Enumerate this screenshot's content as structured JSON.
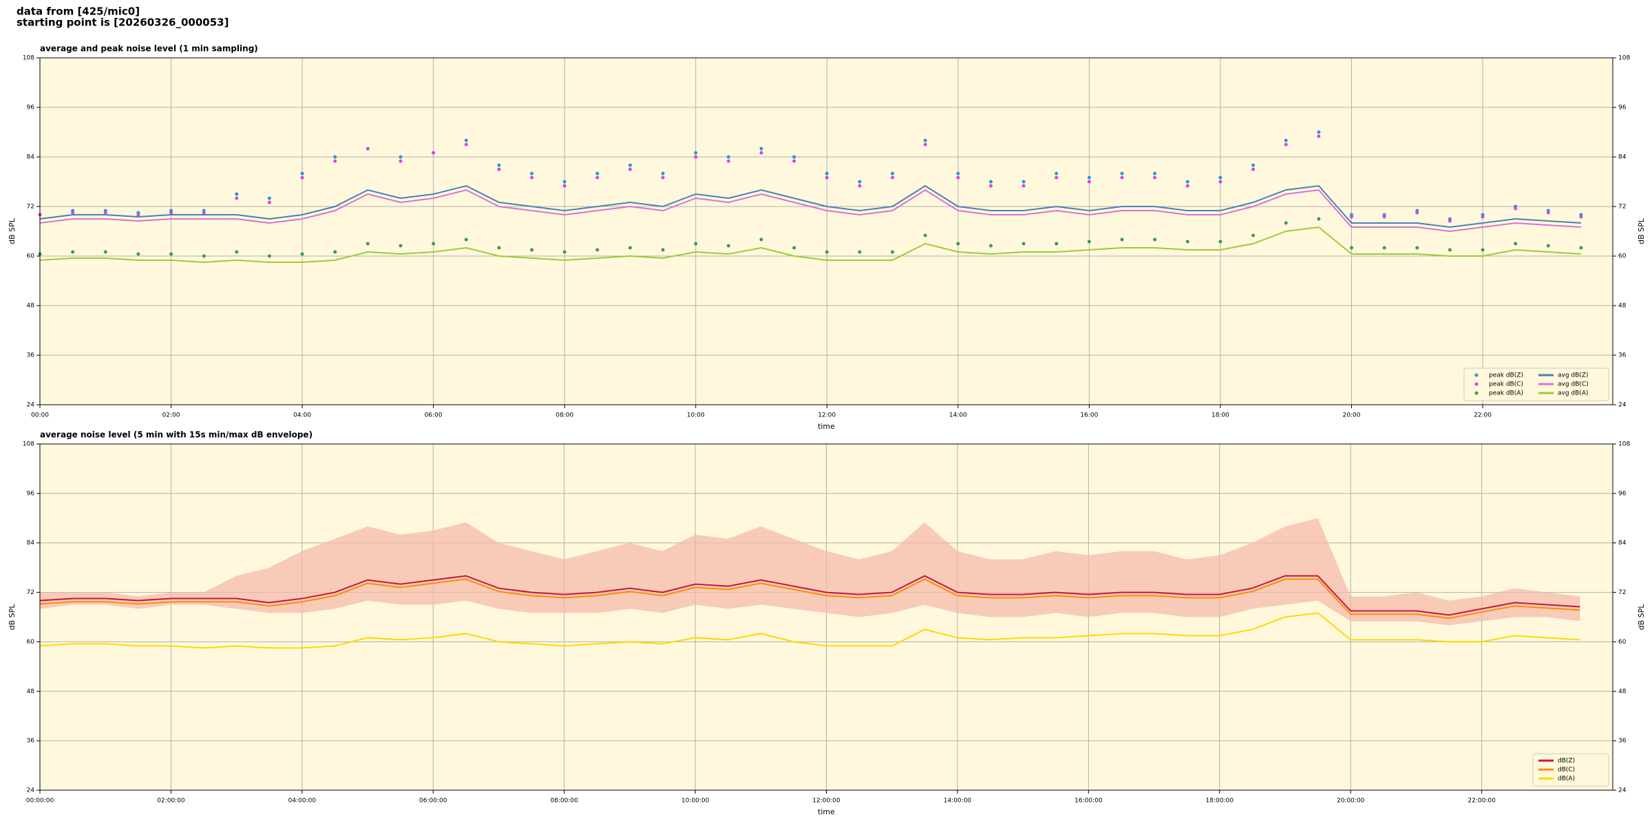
{
  "header": {
    "line1": "data from [425/mic0]",
    "line2": "starting point is [20260326_000053]"
  },
  "chart_data": [
    {
      "type": "line",
      "title": "average and peak noise level (1 min sampling)",
      "x_label": "time",
      "y_label": "dB SPL",
      "legend": "lower right",
      "grid": true,
      "x": [
        "00:00",
        "00:30",
        "01:00",
        "01:30",
        "02:00",
        "02:30",
        "03:00",
        "03:30",
        "04:00",
        "04:30",
        "05:00",
        "05:30",
        "06:00",
        "06:30",
        "07:00",
        "07:30",
        "08:00",
        "08:30",
        "09:00",
        "09:30",
        "10:00",
        "10:30",
        "11:00",
        "11:30",
        "12:00",
        "12:30",
        "13:00",
        "13:30",
        "14:00",
        "14:30",
        "15:00",
        "15:30",
        "16:00",
        "16:30",
        "17:00",
        "17:30",
        "18:00",
        "18:30",
        "19:00",
        "19:30",
        "20:00",
        "20:30",
        "21:00",
        "21:30",
        "22:00",
        "22:30",
        "23:00",
        "23:30"
      ],
      "xlim": [
        "00:00",
        "23:59"
      ],
      "xticks": [
        "00:00",
        "02:00",
        "04:00",
        "06:00",
        "08:00",
        "10:00",
        "12:00",
        "14:00",
        "16:00",
        "18:00",
        "20:00",
        "22:00"
      ],
      "ylim": [
        24,
        108
      ],
      "yticks": [
        24,
        36,
        48,
        60,
        72,
        84,
        96,
        108
      ],
      "series": [
        {
          "name": "peak dB(Z)",
          "kind": "scatter",
          "color": "#1f9ad8",
          "values": [
            70,
            71,
            71,
            70.5,
            71,
            71,
            75,
            74,
            80,
            84,
            86,
            84,
            85,
            88,
            82,
            80,
            78,
            80,
            82,
            80,
            85,
            84,
            86,
            84,
            80,
            78,
            80,
            88,
            80,
            78,
            78,
            80,
            79,
            80,
            80,
            78,
            79,
            82,
            88,
            90,
            70,
            70,
            71,
            69,
            70,
            72,
            71,
            70
          ]
        },
        {
          "name": "peak dB(C)",
          "kind": "scatter",
          "color": "#e040e0",
          "values": [
            70,
            70.5,
            70.5,
            70,
            70.5,
            70.5,
            74,
            73,
            79,
            83,
            86,
            83,
            85,
            87,
            81,
            79,
            77,
            79,
            81,
            79,
            84,
            83,
            85,
            83,
            79,
            77,
            79,
            87,
            79,
            77,
            77,
            79,
            78,
            79,
            79,
            77,
            78,
            81,
            87,
            89,
            69.5,
            69.5,
            70.5,
            68.5,
            69.5,
            71.5,
            70.5,
            69.5
          ]
        },
        {
          "name": "peak dB(A)",
          "kind": "scatter",
          "color": "#3a9a50",
          "values": [
            60.5,
            61,
            61,
            60.5,
            60.5,
            60,
            61,
            60,
            60.5,
            61,
            63,
            62.5,
            63,
            64,
            62,
            61.5,
            61,
            61.5,
            62,
            61.5,
            63,
            62.5,
            64,
            62,
            61,
            61,
            61,
            65,
            63,
            62.5,
            63,
            63,
            63.5,
            64,
            64,
            63.5,
            63.5,
            65,
            68,
            69,
            62,
            62,
            62,
            61.5,
            61.5,
            63,
            62.5,
            62
          ]
        },
        {
          "name": "avg dB(Z)",
          "kind": "line",
          "color": "#4682b4",
          "values": [
            69,
            70,
            70,
            69.5,
            70,
            70,
            70,
            69,
            70,
            72,
            76,
            74,
            75,
            77,
            73,
            72,
            71,
            72,
            73,
            72,
            75,
            74,
            76,
            74,
            72,
            71,
            72,
            77,
            72,
            71,
            71,
            72,
            71,
            72,
            72,
            71,
            71,
            73,
            76,
            77,
            68,
            68,
            68,
            67,
            68,
            69,
            68.5,
            68
          ]
        },
        {
          "name": "avg dB(C)",
          "kind": "line",
          "color": "#da70d6",
          "values": [
            68,
            69,
            69,
            68.5,
            69,
            69,
            69,
            68,
            69,
            71,
            75,
            73,
            74,
            76,
            72,
            71,
            70,
            71,
            72,
            71,
            74,
            73,
            75,
            73,
            71,
            70,
            71,
            76,
            71,
            70,
            70,
            71,
            70,
            71,
            71,
            70,
            70,
            72,
            75,
            76,
            67,
            67,
            67,
            66,
            67,
            68,
            67.5,
            67
          ]
        },
        {
          "name": "avg dB(A)",
          "kind": "line",
          "color": "#9acd32",
          "values": [
            59,
            59.5,
            59.5,
            59,
            59,
            58.5,
            59,
            58.5,
            58.5,
            59,
            61,
            60.5,
            61,
            62,
            60,
            59.5,
            59,
            59.5,
            60,
            59.5,
            61,
            60.5,
            62,
            60,
            59,
            59,
            59,
            63,
            61,
            60.5,
            61,
            61,
            61.5,
            62,
            62,
            61.5,
            61.5,
            63,
            66,
            67,
            60.5,
            60.5,
            60.5,
            60,
            60,
            61.5,
            61,
            60.5
          ]
        }
      ]
    },
    {
      "type": "line",
      "title": "average noise level (5 min with 15s min/max dB envelope)",
      "x_label": "time",
      "y_label": "dB SPL",
      "legend": "lower right",
      "grid": true,
      "x": [
        "00:00:00",
        "00:30:00",
        "01:00:00",
        "01:30:00",
        "02:00:00",
        "02:30:00",
        "03:00:00",
        "03:30:00",
        "04:00:00",
        "04:30:00",
        "05:00:00",
        "05:30:00",
        "06:00:00",
        "06:30:00",
        "07:00:00",
        "07:30:00",
        "08:00:00",
        "08:30:00",
        "09:00:00",
        "09:30:00",
        "10:00:00",
        "10:30:00",
        "11:00:00",
        "11:30:00",
        "12:00:00",
        "12:30:00",
        "13:00:00",
        "13:30:00",
        "14:00:00",
        "14:30:00",
        "15:00:00",
        "15:30:00",
        "16:00:00",
        "16:30:00",
        "17:00:00",
        "17:30:00",
        "18:00:00",
        "18:30:00",
        "19:00:00",
        "19:30:00",
        "20:00:00",
        "20:30:00",
        "21:00:00",
        "21:30:00",
        "22:00:00",
        "22:30:00",
        "23:00:00",
        "23:30:00"
      ],
      "xlim": [
        "00:00:00",
        "23:59:59"
      ],
      "xticks": [
        "00:00:00",
        "02:00:00",
        "04:00:00",
        "06:00:00",
        "08:00:00",
        "10:00:00",
        "12:00:00",
        "14:00:00",
        "16:00:00",
        "18:00:00",
        "20:00:00",
        "22:00:00"
      ],
      "ylim": [
        24,
        108
      ],
      "yticks": [
        24,
        36,
        48,
        60,
        72,
        84,
        96,
        108
      ],
      "envelope": {
        "color": "#f4b8a8",
        "max": [
          72,
          72,
          72,
          71,
          72,
          72,
          76,
          78,
          82,
          85,
          88,
          86,
          87,
          89,
          84,
          82,
          80,
          82,
          84,
          82,
          86,
          85,
          88,
          85,
          82,
          80,
          82,
          89,
          82,
          80,
          80,
          82,
          81,
          82,
          82,
          80,
          81,
          84,
          88,
          90,
          71,
          71,
          72,
          70,
          71,
          73,
          72,
          71
        ],
        "min": [
          68,
          69,
          69,
          68,
          69,
          69,
          68,
          67,
          67,
          68,
          70,
          69,
          69,
          70,
          68,
          67,
          67,
          67,
          68,
          67,
          69,
          68,
          69,
          68,
          67,
          66,
          67,
          69,
          67,
          66,
          66,
          67,
          66,
          67,
          67,
          66,
          66,
          68,
          69,
          70,
          65,
          65,
          65,
          64,
          65,
          66,
          66,
          65
        ]
      },
      "series": [
        {
          "name": "dB(Z)",
          "kind": "line",
          "color": "#c8143c",
          "values": [
            70,
            70.5,
            70.5,
            70,
            70.5,
            70.5,
            70.5,
            69.5,
            70.5,
            72,
            75,
            74,
            75,
            76,
            73,
            72,
            71.5,
            72,
            73,
            72,
            74,
            73.5,
            75,
            73.5,
            72,
            71.5,
            72,
            76,
            72,
            71.5,
            71.5,
            72,
            71.5,
            72,
            72,
            71.5,
            71.5,
            73,
            76,
            76,
            67.5,
            67.5,
            67.5,
            66.5,
            68,
            69.5,
            69,
            68.5
          ]
        },
        {
          "name": "dB(C)",
          "kind": "line",
          "color": "#ff8c00",
          "values": [
            69.2,
            69.7,
            69.7,
            69.2,
            69.7,
            69.7,
            69.7,
            68.7,
            69.7,
            71.2,
            74.2,
            73.2,
            74.2,
            75.2,
            72.2,
            71.2,
            70.7,
            71.2,
            72.2,
            71.2,
            73.2,
            72.7,
            74.2,
            72.7,
            71.2,
            70.7,
            71.2,
            75.2,
            71.2,
            70.7,
            70.7,
            71.2,
            70.7,
            71.2,
            71.2,
            70.7,
            70.7,
            72.2,
            75.2,
            75.2,
            66.7,
            66.7,
            66.7,
            65.7,
            67.2,
            68.7,
            68.2,
            67.7
          ]
        },
        {
          "name": "dB(A)",
          "kind": "line",
          "color": "#ffd700",
          "values": [
            59,
            59.5,
            59.5,
            59,
            59,
            58.5,
            59,
            58.5,
            58.5,
            59,
            61,
            60.5,
            61,
            62,
            60,
            59.5,
            59,
            59.5,
            60,
            59.5,
            61,
            60.5,
            62,
            60,
            59,
            59,
            59,
            63,
            61,
            60.5,
            61,
            61,
            61.5,
            62,
            62,
            61.5,
            61.5,
            63,
            66,
            67,
            60.5,
            60.5,
            60.5,
            60,
            60,
            61.5,
            61,
            60.5
          ]
        }
      ]
    }
  ]
}
